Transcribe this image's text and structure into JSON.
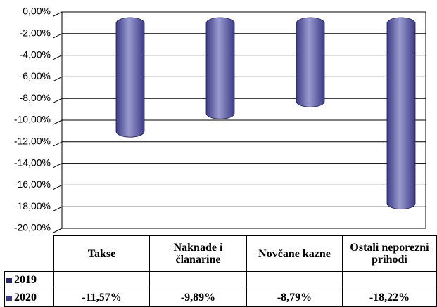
{
  "chart_data": {
    "type": "bar",
    "categories": [
      "Takse",
      "Naknade i članarine",
      "Novčane kazne",
      "Ostali neporezni prihodi"
    ],
    "series": [
      {
        "name": "2019",
        "color": "#2b2b63",
        "values": [
          null,
          null,
          null,
          null
        ]
      },
      {
        "name": "2020",
        "color": "#3b3b85",
        "values": [
          -11.57,
          -9.89,
          -8.79,
          -18.22
        ],
        "value_labels": [
          "-11,57%",
          "-9,89%",
          "-8,79%",
          "-18,22%"
        ]
      }
    ],
    "ylim": [
      -20,
      0
    ],
    "yticks": [
      {
        "value": 0,
        "label": "0,00%"
      },
      {
        "value": -2,
        "label": "-2,00%"
      },
      {
        "value": -4,
        "label": "-4,00%"
      },
      {
        "value": -6,
        "label": "-6,00%"
      },
      {
        "value": -8,
        "label": "-8,00%"
      },
      {
        "value": -10,
        "label": "-10,00%"
      },
      {
        "value": -12,
        "label": "-12,00%"
      },
      {
        "value": -14,
        "label": "-14,00%"
      },
      {
        "value": -16,
        "label": "-16,00%"
      },
      {
        "value": -18,
        "label": "-18,00%"
      },
      {
        "value": -20,
        "label": "-20,00%"
      }
    ],
    "grid": true
  }
}
